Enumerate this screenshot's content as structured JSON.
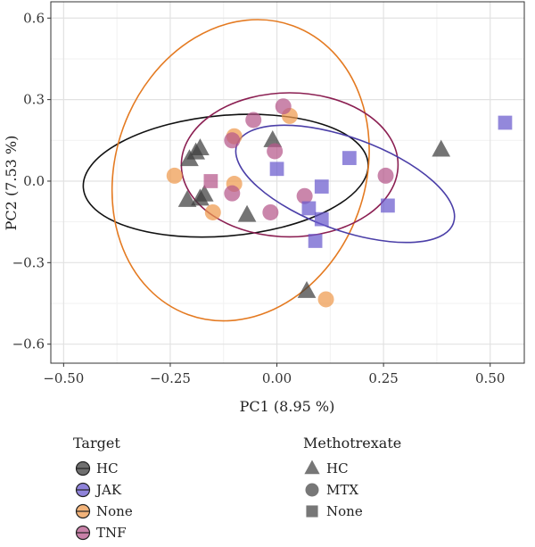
{
  "chart_data": {
    "type": "scatter",
    "xlabel": "PC1 (8.95 %)",
    "ylabel": "PC2 (7.53 %)",
    "xlim": [
      -0.53,
      0.58
    ],
    "ylim": [
      -0.67,
      0.66
    ],
    "xticks": [
      -0.5,
      -0.25,
      0.0,
      0.25,
      0.5
    ],
    "xtick_labels": [
      "−0.50",
      "−0.25",
      "0.00",
      "0.25",
      "0.50"
    ],
    "yticks": [
      -0.6,
      -0.3,
      0.0,
      0.3,
      0.6
    ],
    "ytick_labels": [
      "−0.6",
      "−0.3",
      "0.0",
      "0.3",
      "0.6"
    ],
    "grid": true,
    "legend": {
      "placement": "bottom",
      "color_title": "Target",
      "color_entries": [
        {
          "label": "HC",
          "color": "#3f3f3f"
        },
        {
          "label": "JAK",
          "color": "#6a5acd"
        },
        {
          "label": "None",
          "color": "#ee9a4d"
        },
        {
          "label": "TNF",
          "color": "#b5578b"
        }
      ],
      "shape_title": "Methotrexate",
      "shape_entries": [
        {
          "label": "HC",
          "shape": "triangle"
        },
        {
          "label": "MTX",
          "shape": "circle"
        },
        {
          "label": "None",
          "shape": "square"
        }
      ]
    },
    "ellipses": [
      {
        "target": "HC",
        "color": "#111111",
        "cx": -0.12,
        "cy": 0.02,
        "rx": 0.335,
        "ry": 0.222,
        "angle_deg": -5
      },
      {
        "target": "None",
        "color": "#e47a21",
        "cx": -0.085,
        "cy": 0.04,
        "rx": 0.36,
        "ry": 0.46,
        "angle_deg": -70
      },
      {
        "target": "TNF",
        "color": "#8b1f52",
        "cx": 0.03,
        "cy": 0.06,
        "rx": 0.254,
        "ry": 0.265,
        "angle_deg": 0
      },
      {
        "target": "JAK",
        "color": "#4b3fa8",
        "cx": 0.16,
        "cy": -0.01,
        "rx": 0.27,
        "ry": 0.17,
        "angle_deg": 20
      }
    ],
    "points": [
      {
        "x": -0.205,
        "y": 0.08,
        "target": "HC",
        "shape": "triangle"
      },
      {
        "x": -0.19,
        "y": 0.105,
        "target": "HC",
        "shape": "triangle"
      },
      {
        "x": -0.18,
        "y": 0.12,
        "target": "HC",
        "shape": "triangle"
      },
      {
        "x": -0.21,
        "y": -0.07,
        "target": "HC",
        "shape": "triangle"
      },
      {
        "x": -0.18,
        "y": -0.065,
        "target": "HC",
        "shape": "triangle"
      },
      {
        "x": -0.17,
        "y": -0.05,
        "target": "HC",
        "shape": "triangle"
      },
      {
        "x": -0.07,
        "y": -0.125,
        "target": "HC",
        "shape": "triangle"
      },
      {
        "x": -0.01,
        "y": 0.15,
        "target": "HC",
        "shape": "triangle"
      },
      {
        "x": 0.07,
        "y": -0.405,
        "target": "HC",
        "shape": "triangle"
      },
      {
        "x": 0.385,
        "y": 0.115,
        "target": "HC",
        "shape": "triangle"
      },
      {
        "x": -0.24,
        "y": 0.02,
        "target": "None",
        "shape": "circle"
      },
      {
        "x": -0.15,
        "y": -0.115,
        "target": "None",
        "shape": "circle"
      },
      {
        "x": -0.1,
        "y": -0.01,
        "target": "None",
        "shape": "circle"
      },
      {
        "x": -0.1,
        "y": 0.165,
        "target": "None",
        "shape": "circle"
      },
      {
        "x": 0.03,
        "y": 0.24,
        "target": "None",
        "shape": "circle"
      },
      {
        "x": 0.115,
        "y": -0.435,
        "target": "None",
        "shape": "circle"
      },
      {
        "x": -0.105,
        "y": 0.15,
        "target": "TNF",
        "shape": "circle"
      },
      {
        "x": -0.105,
        "y": -0.045,
        "target": "TNF",
        "shape": "circle"
      },
      {
        "x": -0.055,
        "y": 0.225,
        "target": "TNF",
        "shape": "circle"
      },
      {
        "x": -0.015,
        "y": -0.115,
        "target": "TNF",
        "shape": "circle"
      },
      {
        "x": -0.005,
        "y": 0.11,
        "target": "TNF",
        "shape": "circle"
      },
      {
        "x": 0.015,
        "y": 0.275,
        "target": "TNF",
        "shape": "circle"
      },
      {
        "x": 0.065,
        "y": -0.055,
        "target": "TNF",
        "shape": "circle"
      },
      {
        "x": 0.255,
        "y": 0.02,
        "target": "TNF",
        "shape": "circle"
      },
      {
        "x": -0.155,
        "y": 0.0,
        "target": "TNF",
        "shape": "square"
      },
      {
        "x": 0.0,
        "y": 0.045,
        "target": "JAK",
        "shape": "square"
      },
      {
        "x": 0.075,
        "y": -0.1,
        "target": "JAK",
        "shape": "square"
      },
      {
        "x": 0.09,
        "y": -0.22,
        "target": "JAK",
        "shape": "square"
      },
      {
        "x": 0.105,
        "y": -0.02,
        "target": "JAK",
        "shape": "square"
      },
      {
        "x": 0.105,
        "y": -0.14,
        "target": "JAK",
        "shape": "square"
      },
      {
        "x": 0.17,
        "y": 0.085,
        "target": "JAK",
        "shape": "square"
      },
      {
        "x": 0.26,
        "y": -0.09,
        "target": "JAK",
        "shape": "square"
      },
      {
        "x": 0.535,
        "y": 0.215,
        "target": "JAK",
        "shape": "square"
      }
    ]
  }
}
